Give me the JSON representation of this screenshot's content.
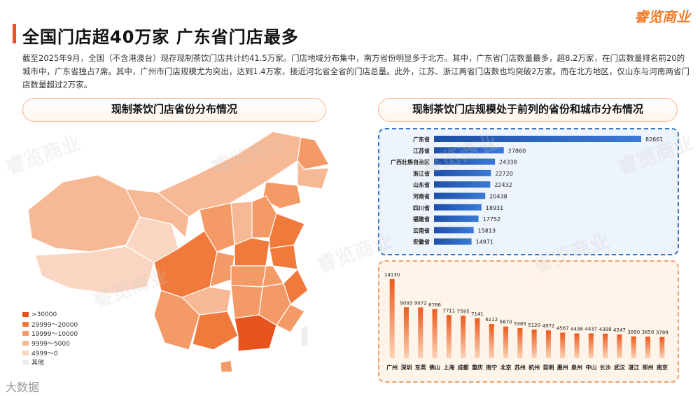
{
  "header": {
    "title": "全国门店超40万家 广东省门店最多",
    "brand": "睿览商业",
    "intro": "截至2025年9月，全国（不含港澳台）现存现制茶饮门店共计约41.5万家。门店地域分布集中，南方省份明显多于北方。其中，广东省门店数量最多，超8.2万家，在门店数量排名前20的城市中，广东省独占7席。其中，广州市门店规模尤为突出，达到1.4万家，接近河北省全省的门店总量。此外，江苏、浙江两省门店数也均突破2万家。而在北方地区，仅山东与河南两省门店数量超过2万家。"
  },
  "left_panel": {
    "heading": "现制茶饮门店省份分布情况",
    "legend": [
      {
        "label": ">30000",
        "color": "#e8541e"
      },
      {
        "label": "29999～20000",
        "color": "#f07a3c"
      },
      {
        "label": "19999～10000",
        "color": "#f49a66"
      },
      {
        "label": "9999～5000",
        "color": "#f7b995"
      },
      {
        "label": "4999～0",
        "color": "#fad6c2"
      },
      {
        "label": "其他",
        "color": "#ededed"
      }
    ]
  },
  "right_panel": {
    "heading": "现制茶饮门店规模处于前列的省份和城市分布情况"
  },
  "watermark": "睿览商业",
  "bottom_logo": "大数据",
  "chart_data": [
    {
      "type": "bar",
      "orientation": "horizontal",
      "categories": [
        "广东省",
        "江苏省",
        "广西壮族自治区",
        "浙江省",
        "山东省",
        "河南省",
        "四川省",
        "福建省",
        "云南省",
        "安徽省"
      ],
      "values": [
        82661,
        27860,
        24338,
        22720,
        22432,
        20438,
        18931,
        17752,
        15813,
        14971
      ],
      "color": "#2a66c4"
    },
    {
      "type": "bar",
      "orientation": "vertical",
      "categories": [
        "广州",
        "深圳",
        "东莞",
        "佛山",
        "上海",
        "成都",
        "重庆",
        "南宁",
        "北京",
        "苏州",
        "杭州",
        "昆明",
        "惠州",
        "泉州",
        "中山",
        "长沙",
        "武汉",
        "湛江",
        "郑州",
        "南京"
      ],
      "values": [
        14130,
        9093,
        9072,
        8766,
        7711,
        7595,
        7141,
        6112,
        5670,
        5383,
        5120,
        4972,
        4567,
        4438,
        4437,
        4398,
        4247,
        3890,
        3850,
        3789
      ],
      "color": "#f26b2a"
    }
  ]
}
